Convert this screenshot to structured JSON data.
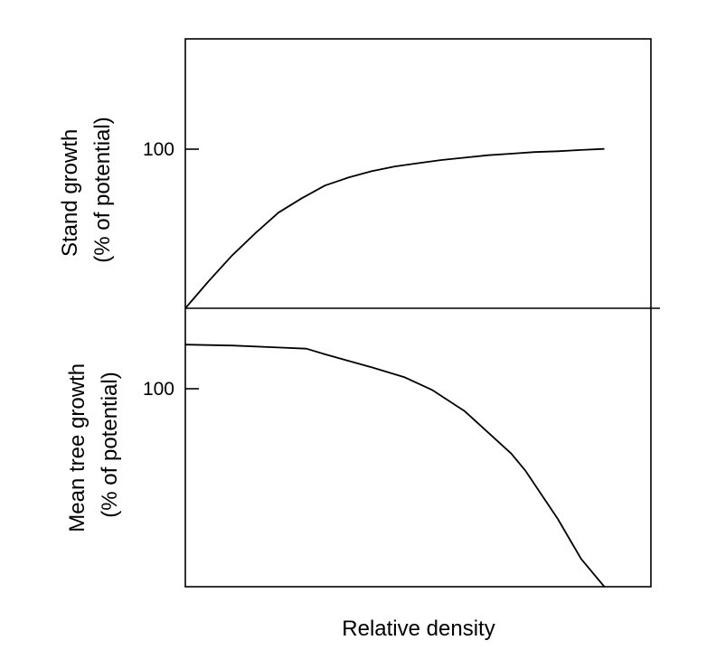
{
  "chart_data": [
    {
      "type": "line",
      "panel": "top",
      "ylabel_lines": [
        "Stand growth",
        "(% of potential)"
      ],
      "yticks": [
        100
      ],
      "ylim": [
        0,
        169
      ],
      "xlim": [
        0,
        1
      ],
      "grid": false,
      "series": [
        {
          "x": [
            0,
            0.05,
            0.1,
            0.15,
            0.2,
            0.25,
            0.3,
            0.35,
            0.4,
            0.45,
            0.5,
            0.55,
            0.6,
            0.65,
            0.7,
            0.75,
            0.8,
            0.85,
            0.9
          ],
          "values": [
            0,
            17,
            33,
            47,
            60,
            69,
            77,
            82,
            86,
            89,
            91,
            93,
            94.5,
            96,
            97,
            98,
            98.5,
            99.3,
            100
          ]
        }
      ]
    },
    {
      "type": "line",
      "panel": "bottom",
      "ylabel_lines": [
        "Mean tree growth",
        "(% of potential)"
      ],
      "yticks": [
        100
      ],
      "ylim": [
        0,
        115
      ],
      "xlim": [
        0,
        1
      ],
      "grid": false,
      "series": [
        {
          "x": [
            0,
            0.1,
            0.2,
            0.26,
            0.3,
            0.4,
            0.47,
            0.53,
            0.6,
            0.7,
            0.73,
            0.8,
            0.85,
            0.9
          ],
          "values": [
            100,
            99.6,
            98.8,
            98.3,
            96,
            90.6,
            86.6,
            81.3,
            72.5,
            55,
            48,
            28,
            11.5,
            0
          ]
        }
      ]
    }
  ],
  "xlabel": "Relative density"
}
